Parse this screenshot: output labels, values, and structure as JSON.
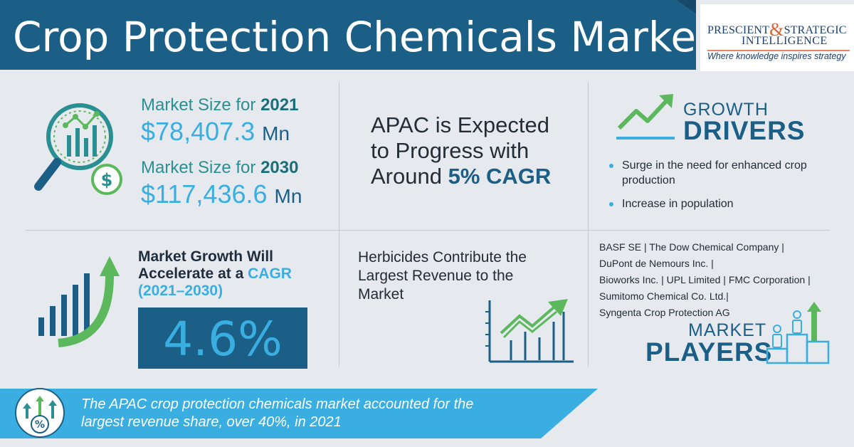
{
  "header": {
    "title": "Crop Protection Chemicals Market",
    "logo": {
      "line1_a": "PRESCIENT",
      "amp": "&",
      "line1_b": "STRATEGIC",
      "line2": "INTELLIGENCE",
      "tagline": "Where knowledge inspires strategy"
    }
  },
  "market_size": {
    "label_prefix": "Market Size for",
    "year_2021": "2021",
    "value_2021": "$78,407.3",
    "year_2030": "2030",
    "value_2030": "$117,436.6",
    "unit": "Mn"
  },
  "apac": {
    "line1": "APAC is Expected",
    "line2": "to Progress with",
    "line3_prefix": "Around",
    "line3_value": "5% CAGR"
  },
  "growth_drivers": {
    "heading_small": "GROWTH",
    "heading_big": "DRIVERS",
    "items": [
      "Surge in the need for enhanced crop production",
      "Increase in population"
    ]
  },
  "market_growth": {
    "line1": "Market Growth Will",
    "line2_prefix": "Accelerate at a",
    "line2_accent": "CAGR",
    "line3": "(2021–2030)",
    "value": "4.6%"
  },
  "herbicides": {
    "text": "Herbicides Contribute the Largest Revenue to the Market"
  },
  "market_players": {
    "line1": "BASF SE | The Dow Chemical Company |",
    "line2": "DuPont de Nemours Inc. |",
    "line3": "Bioworks Inc. | UPL Limited | FMC Corporation |",
    "line4": "Sumitomo Chemical Co. Ltd.|",
    "line5": "Syngenta Crop Protection AG",
    "heading_small": "MARKET",
    "heading_big": "PLAYERS"
  },
  "footer": {
    "line1": "The APAC crop protection chemicals market accounted for the",
    "line2": "largest revenue share, over 40%, in 2021"
  },
  "colors": {
    "navy": "#1c5f86",
    "teal": "#2a8f91",
    "sky_blue": "#3aaee0",
    "green": "#5cb85c",
    "background": "#e6e9ee"
  },
  "icons": {
    "header_logo": "prescient-strategic-intelligence-logo",
    "market_size": "magnifier-chart-dollar-icon",
    "growth_drivers": "trend-arrow-icon",
    "market_growth": "bar-chart-arrow-icon",
    "herbicides": "chart-rising-arrow-icon",
    "market_players": "people-podium-arrow-icon",
    "footer": "percent-arrows-icon"
  }
}
